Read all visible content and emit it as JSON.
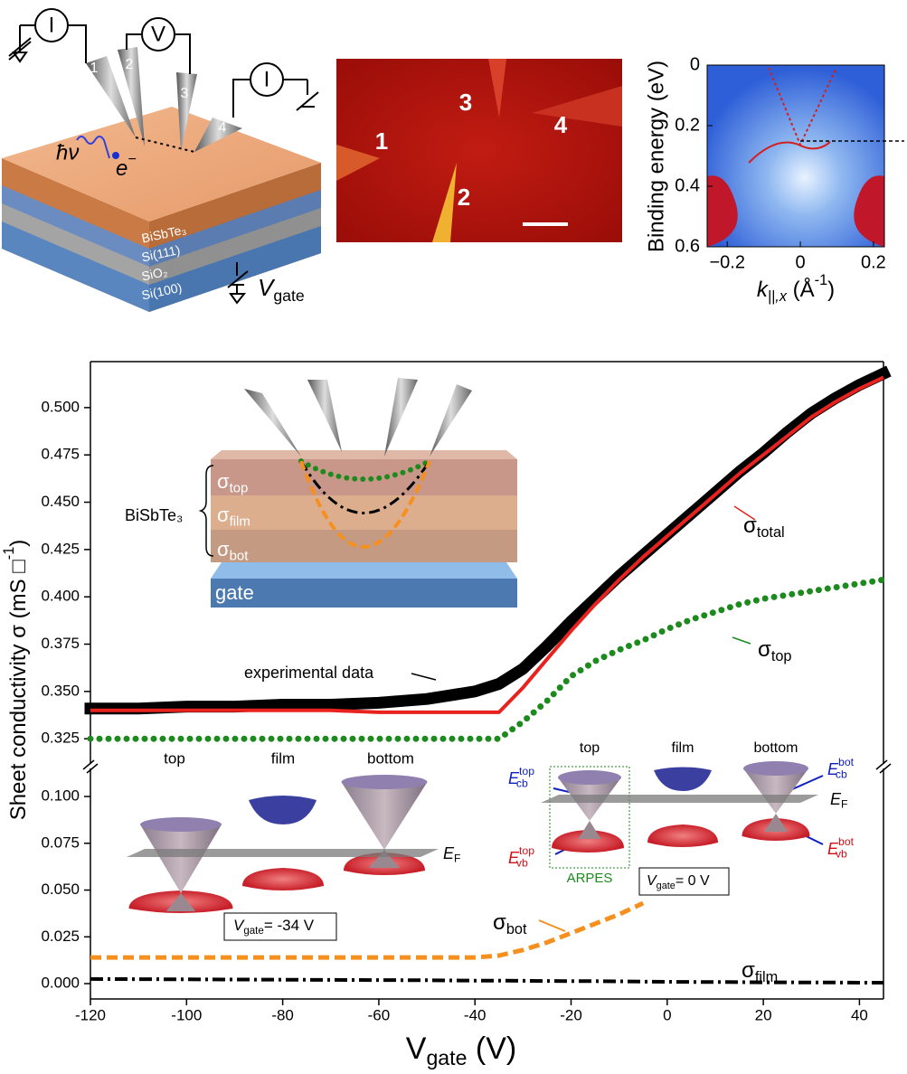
{
  "panel_a": {
    "meters": [
      "I",
      "V",
      "I"
    ],
    "probes": [
      "1",
      "2",
      "3",
      "4"
    ],
    "photon": "ħν",
    "electron": [
      {
        "text": "e",
        "italic": true
      },
      {
        "text": "−",
        "pos": "sup"
      }
    ],
    "layers": [
      "BiSbTe₃",
      "Si(111)",
      "SiO₂",
      "Si(100)"
    ],
    "gate": [
      {
        "text": "V",
        "italic": true
      },
      {
        "text": "gate",
        "pos": "sub"
      }
    ]
  },
  "panel_b": {
    "probes": [
      "1",
      "3",
      "2",
      "4"
    ]
  },
  "chart_data": [
    {
      "type": "heatmap",
      "ylabel": "Binding energy (eV)",
      "xlabel": [
        {
          "text": "k",
          "italic": true
        },
        {
          "text": "||,x",
          "pos": "sub",
          "italic": true
        },
        {
          "text": " (Å"
        },
        {
          "text": "-1",
          "pos": "sup"
        },
        {
          "text": ")"
        }
      ],
      "xlim": [
        -0.255,
        0.23
      ],
      "ylim": [
        0,
        0.6
      ],
      "y_inverted": true,
      "xticks": [
        {
          "value": -0.2,
          "label": "−0.2"
        },
        0,
        0.2
      ],
      "yticks": [
        0,
        0.2,
        0.4,
        0.6
      ]
    },
    {
      "type": "line",
      "axis_break": true,
      "xlabel": [
        {
          "text": "V"
        },
        {
          "text": "gate",
          "pos": "sub"
        },
        {
          "text": " (V)"
        }
      ],
      "ylabel": [
        {
          "text": "Sheet conductivity σ (mS □"
        },
        {
          "text": "-1",
          "pos": "sup"
        },
        {
          "text": ")"
        }
      ],
      "xlim": [
        -120,
        45
      ],
      "xticks": [
        -120,
        -100,
        -80,
        -60,
        -40,
        -20,
        0,
        20,
        40
      ],
      "y_segments": [
        {
          "ylim": [
            -0.0082,
            0.115
          ],
          "yticks": [
            {
              "value": 0,
              "label": "0.000"
            },
            0.025,
            {
              "value": 0.05,
              "label": "0.050"
            },
            0.075,
            {
              "value": 0.1,
              "label": "0.100"
            }
          ]
        },
        {
          "ylim": [
            0.3117,
            0.5243
          ],
          "yticks": [
            0.325,
            {
              "value": 0.35,
              "label": "0.350"
            },
            0.375,
            {
              "value": 0.4,
              "label": "0.400"
            },
            0.425,
            {
              "value": 0.45,
              "label": "0.450"
            },
            0.475,
            {
              "value": 0.5,
              "label": "0.500"
            }
          ]
        }
      ],
      "x": [
        -120,
        -110,
        -100,
        -90,
        -80,
        -70,
        -60,
        -50,
        -40,
        -35,
        -30,
        -25,
        -20,
        -15,
        -10,
        -5,
        0,
        5,
        10,
        15,
        20,
        25,
        30,
        35,
        40,
        45
      ],
      "series": [
        {
          "name": [
            {
              "text": "experimental data"
            }
          ],
          "color": "#000000",
          "marker": "square",
          "values": [
            0.341,
            0.341,
            0.342,
            0.342,
            0.343,
            0.343,
            0.344,
            0.346,
            0.35,
            0.354,
            0.362,
            0.374,
            0.387,
            0.399,
            0.411,
            0.422,
            0.433,
            0.444,
            0.455,
            0.466,
            0.476,
            0.487,
            0.497,
            0.505,
            0.512,
            0.518
          ]
        },
        {
          "name": [
            {
              "text": "σ"
            },
            {
              "text": "total",
              "pos": "sub"
            }
          ],
          "color": "#e8231f",
          "line": "solid",
          "values": [
            0.34,
            0.34,
            0.34,
            0.34,
            0.34,
            0.34,
            0.339,
            0.339,
            0.339,
            0.339,
            0.352,
            0.367,
            0.382,
            0.396,
            0.409,
            0.421,
            0.432,
            0.443,
            0.454,
            0.465,
            0.475,
            0.485,
            0.495,
            0.503,
            0.51,
            0.516
          ]
        },
        {
          "name": [
            {
              "text": "σ"
            },
            {
              "text": "top",
              "pos": "sub"
            }
          ],
          "color": "#1d8a1d",
          "line": "dotted",
          "values": [
            0.325,
            0.325,
            0.325,
            0.325,
            0.325,
            0.325,
            0.325,
            0.325,
            0.325,
            0.325,
            0.334,
            0.345,
            0.358,
            0.366,
            0.372,
            0.377,
            0.383,
            0.388,
            0.392,
            0.396,
            0.399,
            0.401,
            0.403,
            0.405,
            0.407,
            0.409
          ]
        },
        {
          "name": [
            {
              "text": "σ"
            },
            {
              "text": "bot",
              "pos": "sub"
            }
          ],
          "color": "#f5901e",
          "line": "dashed",
          "values": [
            0.014,
            0.014,
            0.014,
            0.014,
            0.014,
            0.014,
            0.014,
            0.014,
            0.014,
            0.015,
            0.018,
            0.022,
            0.027,
            0.032,
            0.037,
            0.043,
            null,
            null,
            null,
            null,
            null,
            null,
            null,
            null,
            null,
            null
          ]
        },
        {
          "name": [
            {
              "text": "σ"
            },
            {
              "text": "film",
              "pos": "sub"
            }
          ],
          "color": "#000000",
          "line": "dashdot",
          "values": [
            0.0025,
            0.0024,
            0.0023,
            0.0022,
            0.0021,
            0.002,
            0.0019,
            0.0018,
            0.0016,
            0.0016,
            0.0015,
            0.0014,
            0.0013,
            0.0013,
            0.0012,
            0.0011,
            0.001,
            0.0009,
            0.0009,
            0.0008,
            0.0007,
            0.0007,
            0.0006,
            0.0006,
            0.0005,
            0.0005
          ]
        }
      ],
      "layer_inset": {
        "material": "BiSbTe₃",
        "layers": [
          [
            {
              "text": "σ"
            },
            {
              "text": "top",
              "pos": "sub"
            }
          ],
          [
            {
              "text": "σ"
            },
            {
              "text": "film",
              "pos": "sub"
            }
          ],
          [
            {
              "text": "σ"
            },
            {
              "text": "bot",
              "pos": "sub"
            }
          ]
        ],
        "gate": "gate"
      },
      "band_insets": [
        {
          "labels": [
            "top",
            "film",
            "bottom"
          ],
          "fermi": [
            {
              "text": "E",
              "italic": true
            },
            {
              "text": "F",
              "pos": "sub"
            }
          ],
          "gate": [
            {
              "text": "V",
              "italic": true
            },
            {
              "text": "gate",
              "pos": "sub"
            },
            {
              "text": "= -34 V"
            }
          ]
        },
        {
          "labels": [
            "top",
            "film",
            "bottom"
          ],
          "fermi": [
            {
              "text": "E",
              "italic": true
            },
            {
              "text": "F",
              "pos": "sub"
            }
          ],
          "gate": [
            {
              "text": "V",
              "italic": true
            },
            {
              "text": "gate",
              "pos": "sub"
            },
            {
              "text": "= 0 V"
            }
          ],
          "method": "ARPES",
          "energies": [
            [
              {
                "text": "E",
                "italic": true
              },
              {
                "text": "top",
                "pos": "sup"
              },
              {
                "text": "cb",
                "pos": "sub"
              }
            ],
            [
              {
                "text": "E",
                "italic": true
              },
              {
                "text": "top",
                "pos": "sup"
              },
              {
                "text": "vb",
                "pos": "sub"
              }
            ],
            [
              {
                "text": "E",
                "italic": true
              },
              {
                "text": "bot",
                "pos": "sup"
              },
              {
                "text": "cb",
                "pos": "sub"
              }
            ],
            [
              {
                "text": "E",
                "italic": true
              },
              {
                "text": "bot",
                "pos": "sup"
              },
              {
                "text": "vb",
                "pos": "sub"
              }
            ]
          ]
        }
      ]
    }
  ]
}
